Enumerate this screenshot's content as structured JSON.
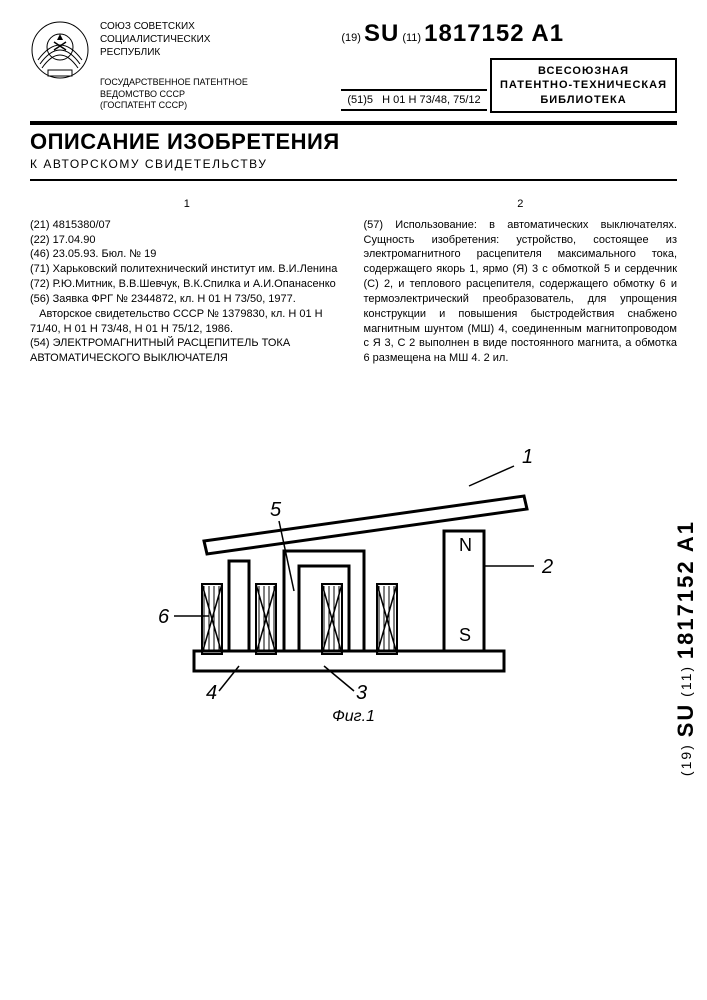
{
  "header": {
    "republic": "СОЮЗ СОВЕТСКИХ\nСОЦИАЛИСТИЧЕСКИХ\nРЕСПУБЛИК",
    "agency": "ГОСУДАРСТВЕННОЕ ПАТЕНТНОЕ\nВЕДОМСТВО СССР\n(ГОСПАТЕНТ СССР)",
    "code19": "(19)",
    "country": "SU",
    "code11": "(11)",
    "pubnum": "1817152 A1",
    "code51": "(51)5",
    "ipc": "H 01 H 73/48, 75/12"
  },
  "stamp": {
    "line1": "ВСЕСОЮЗНАЯ",
    "line2": "ПАТЕНТНО-ТЕХНИЧЕСКАЯ",
    "line3": "БИБЛИОТЕКА"
  },
  "title": {
    "main": "ОПИСАНИЕ ИЗОБРЕТЕНИЯ",
    "sub": "К АВТОРСКОМУ СВИДЕТЕЛЬСТВУ"
  },
  "cols": {
    "n1": "1",
    "n2": "2",
    "left": "(21) 4815380/07\n(22) 17.04.90\n(46) 23.05.93. Бюл. № 19\n(71) Харьковский политехнический институт им. В.И.Ленина\n(72) Р.Ю.Митник, В.В.Шевчук, В.К.Спилка и А.И.Опанасенко\n(56) Заявка ФРГ № 2344872, кл. H 01 H 73/50, 1977.\n   Авторское свидетельство СССР № 1379830, кл. H 01 H 71/40, H 01 H 73/48, H 01 H 75/12, 1986.\n(54) ЭЛЕКТРОМАГНИТНЫЙ РАСЦЕПИТЕЛЬ ТОКА АВТОМАТИЧЕСКОГО ВЫКЛЮЧАТЕЛЯ",
    "right": "(57) Использование: в автоматических выключателях. Сущность изобретения: устройство, состоящее из электромагнитного расцепителя максимального тока, содержащего якорь 1, ярмо (Я) 3 с обмоткой 5 и сердечник (С) 2, и теплового расцепителя, содержащего обмотку 6 и термоэлектрический преобразователь, для упрощения конструкции и повышения быстродействия снабжено магнитным шунтом (МШ) 4, соединенным магнитопроводом с Я 3, С 2 выполнен в виде постоянного магнита, а обмотка 6 размещена на МШ 4. 2 ил."
  },
  "figure": {
    "label": "Фиг.1",
    "refs": {
      "r1": "1",
      "r2": "2",
      "r3": "3",
      "r4": "4",
      "r5": "5",
      "r6": "6"
    },
    "poles": {
      "n": "N",
      "s": "S"
    },
    "stroke": "#000000",
    "hatch_lines": [
      "M80,195 L80,260",
      "M85,195 L85,260",
      "M90,195 L90,260",
      "M95,195 L95,260",
      "M135,195 L135,260",
      "M140,195 L140,260",
      "M145,195 L145,260",
      "M150,195 L150,260",
      "M200,195 L200,260",
      "M205,195 L205,260",
      "M210,195 L210,260",
      "M215,195 L215,260",
      "M255,195 L255,260",
      "M260,195 L260,260",
      "M265,195 L265,260",
      "M270,195 L270,260"
    ]
  },
  "side": {
    "code19": "(19)",
    "country": "SU",
    "code11": "(11)",
    "pubnum": "1817152 A1"
  }
}
